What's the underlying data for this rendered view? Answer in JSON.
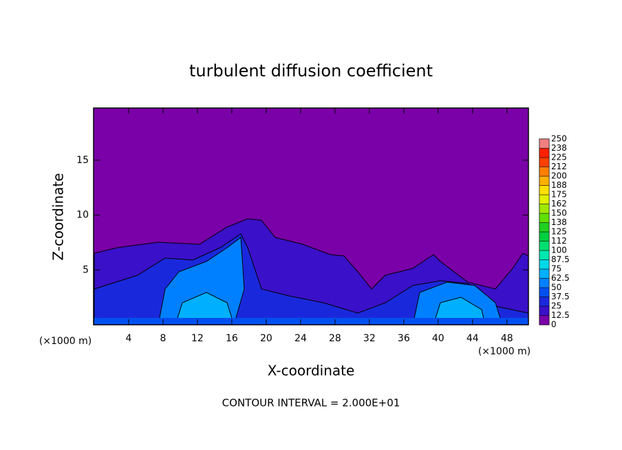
{
  "chart_data": {
    "type": "contour",
    "title": "turbulent diffusion coefficient",
    "x_label": "X-coordinate",
    "y_label": "Z-coordinate",
    "x_unit": "(×1000 m)",
    "note": "CONTOUR INTERVAL = 2.000E+01",
    "xlim": [
      0,
      50.5
    ],
    "xticks": [
      4,
      8,
      12,
      16,
      20,
      24,
      28,
      32,
      36,
      40,
      44,
      48
    ],
    "ylim": [
      0,
      19.75
    ],
    "yticks": [
      5,
      10,
      15
    ],
    "colorbar": {
      "ticks": [
        0,
        12.5,
        25,
        37.5,
        50,
        62.5,
        75,
        87.5,
        100,
        {
          "value": 112.5,
          "label": "112"
        },
        125,
        {
          "value": 137.5,
          "label": "138"
        },
        150,
        {
          "value": 162.5,
          "label": "162"
        },
        175,
        {
          "value": 187.5,
          "label": "188"
        },
        200,
        {
          "value": 212.5,
          "label": "212"
        },
        225,
        {
          "value": 237.5,
          "label": "238"
        },
        250
      ],
      "colors": [
        "#7a00a8",
        "#3a10c8",
        "#1a28dc",
        "#0050f0",
        "#0080ff",
        "#00b0ff",
        "#00d8e8",
        "#00e8b0",
        "#00e070",
        "#00d040",
        "#20d020",
        "#60e000",
        "#a0e800",
        "#e0f000",
        "#ffe000",
        "#ffb000",
        "#ff8000",
        "#ff4000",
        "#ff2000",
        "#f08080"
      ]
    }
  }
}
